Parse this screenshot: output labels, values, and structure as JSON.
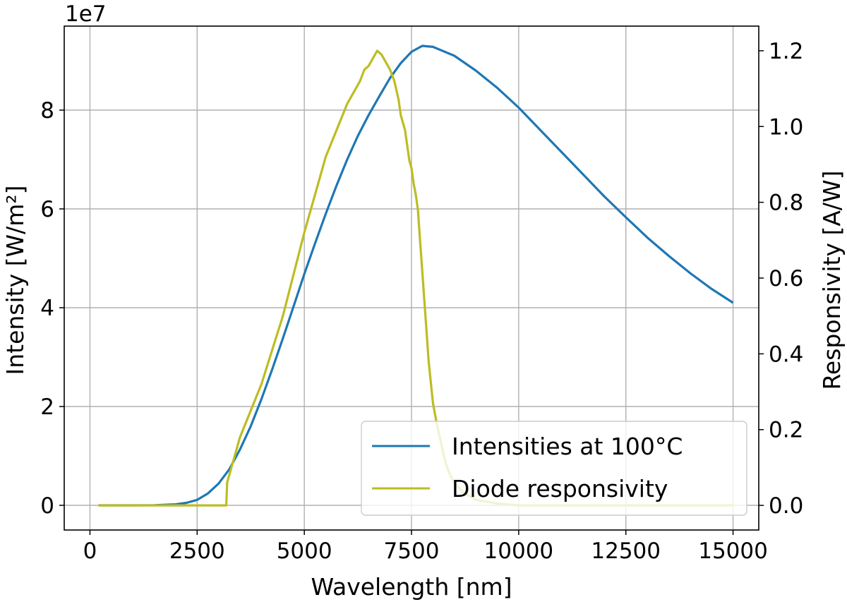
{
  "chart_data": {
    "type": "line",
    "title": "",
    "xlabel": "Wavelength [nm]",
    "ylabel": "Intensity [W/m²]",
    "y2label": "Responsivity [A/W]",
    "y_offset_label": "1e7",
    "xlim": [
      -600,
      15600
    ],
    "ylim": [
      -5000000,
      97000000
    ],
    "y2lim": [
      -0.065,
      1.265
    ],
    "x_ticks": [
      "0",
      "2500",
      "5000",
      "7500",
      "10000",
      "12500",
      "15000"
    ],
    "x_tick_values": [
      0,
      2500,
      5000,
      7500,
      10000,
      12500,
      15000
    ],
    "y_ticks": [
      "0",
      "2",
      "4",
      "6",
      "8"
    ],
    "y_tick_values": [
      0,
      20000000,
      40000000,
      60000000,
      80000000
    ],
    "y2_ticks": [
      "0.0",
      "0.2",
      "0.4",
      "0.6",
      "0.8",
      "1.0",
      "1.2"
    ],
    "y2_tick_values": [
      0.0,
      0.2,
      0.4,
      0.6,
      0.8,
      1.0,
      1.2
    ],
    "grid": true,
    "legend_position": "bottom-right",
    "series": [
      {
        "name": "Intensities at 100°C",
        "axis": "left",
        "color": "#1f77b4",
        "x": [
          200,
          1000,
          1500,
          2000,
          2250,
          2500,
          2750,
          3000,
          3250,
          3500,
          3750,
          4000,
          4250,
          4500,
          4750,
          5000,
          5250,
          5500,
          5750,
          6000,
          6250,
          6500,
          6750,
          7000,
          7250,
          7500,
          7750,
          8000,
          8500,
          9000,
          9500,
          10000,
          10500,
          11000,
          11500,
          12000,
          12500,
          13000,
          13500,
          14000,
          14500,
          15000
        ],
        "y": [
          0,
          0,
          10000,
          200000,
          500000,
          1100000,
          2400000,
          4400000,
          7300000,
          11300000,
          16000000,
          21500000,
          27500000,
          33800000,
          40300000,
          46800000,
          53000000,
          59000000,
          64700000,
          70000000,
          74800000,
          79000000,
          82800000,
          86500000,
          89500000,
          91800000,
          93000000,
          92800000,
          91000000,
          88000000,
          84500000,
          80500000,
          76000000,
          71500000,
          67000000,
          62500000,
          58300000,
          54200000,
          50500000,
          47000000,
          43800000,
          41000000
        ]
      },
      {
        "name": "Diode responsivity",
        "axis": "right",
        "color": "#bcbd22",
        "x": [
          200,
          1000,
          2000,
          3000,
          3180,
          3200,
          3500,
          4000,
          4500,
          5000,
          5500,
          6000,
          6300,
          6400,
          6500,
          6600,
          6700,
          6800,
          6900,
          7000,
          7100,
          7200,
          7250,
          7300,
          7350,
          7400,
          7450,
          7500,
          7550,
          7600,
          7650,
          7700,
          7750,
          7800,
          7850,
          7900,
          8000,
          8100,
          8200,
          8300,
          8400,
          8500,
          8700,
          9000,
          9500,
          10000,
          11000,
          12000,
          13000,
          14000,
          15000
        ],
        "y": [
          0.0,
          0.0,
          0.0,
          0.0,
          0.0,
          0.06,
          0.18,
          0.32,
          0.5,
          0.72,
          0.92,
          1.06,
          1.12,
          1.15,
          1.16,
          1.18,
          1.2,
          1.19,
          1.17,
          1.15,
          1.12,
          1.07,
          1.03,
          1.01,
          0.99,
          0.95,
          0.91,
          0.89,
          0.85,
          0.82,
          0.78,
          0.7,
          0.62,
          0.54,
          0.46,
          0.38,
          0.27,
          0.21,
          0.16,
          0.11,
          0.08,
          0.06,
          0.035,
          0.015,
          0.005,
          0.0,
          0.0,
          0.0,
          0.0,
          0.0,
          0.0
        ]
      }
    ]
  }
}
